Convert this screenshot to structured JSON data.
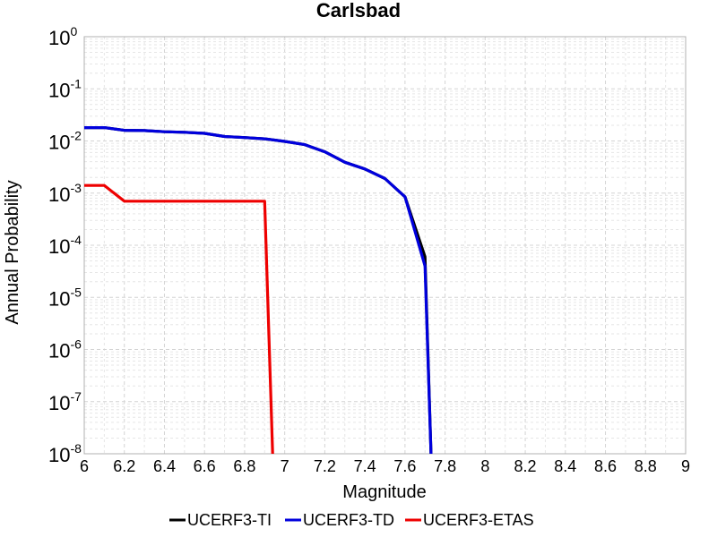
{
  "chart_data": {
    "type": "line",
    "title": "Carlsbad",
    "xlabel": "Magnitude",
    "ylabel": "Annual Probability",
    "xlim": [
      6,
      9
    ],
    "ylim": [
      1e-08,
      1
    ],
    "yscale": "log",
    "grid": true,
    "legend_position": "bottom",
    "x_ticks": [
      "6",
      "6.2",
      "6.4",
      "6.6",
      "6.8",
      "7",
      "7.2",
      "7.4",
      "7.6",
      "7.8",
      "8",
      "8.2",
      "8.4",
      "8.6",
      "8.8",
      "9"
    ],
    "y_ticks": [
      {
        "base": "10",
        "exp": "0"
      },
      {
        "base": "10",
        "exp": "-1"
      },
      {
        "base": "10",
        "exp": "-2"
      },
      {
        "base": "10",
        "exp": "-3"
      },
      {
        "base": "10",
        "exp": "-4"
      },
      {
        "base": "10",
        "exp": "-5"
      },
      {
        "base": "10",
        "exp": "-6"
      },
      {
        "base": "10",
        "exp": "-7"
      },
      {
        "base": "10",
        "exp": "-8"
      }
    ],
    "series": [
      {
        "name": "UCERF3-TI",
        "color": "#000000",
        "x": [
          6.0,
          6.1,
          6.2,
          6.3,
          6.4,
          6.5,
          6.6,
          6.7,
          6.8,
          6.9,
          7.0,
          7.1,
          7.2,
          7.3,
          7.4,
          7.5,
          7.6,
          7.7,
          7.73
        ],
        "y": [
          0.018,
          0.018,
          0.016,
          0.0158,
          0.015,
          0.0147,
          0.014,
          0.0122,
          0.0116,
          0.011,
          0.0098,
          0.0085,
          0.0062,
          0.0039,
          0.0029,
          0.0019,
          0.00085,
          6e-05,
          1e-08
        ]
      },
      {
        "name": "UCERF3-TD",
        "color": "#0000dd",
        "x": [
          6.0,
          6.1,
          6.2,
          6.3,
          6.4,
          6.5,
          6.6,
          6.7,
          6.8,
          6.9,
          7.0,
          7.1,
          7.2,
          7.3,
          7.4,
          7.5,
          7.6,
          7.7,
          7.73
        ],
        "y": [
          0.018,
          0.018,
          0.016,
          0.0158,
          0.015,
          0.0147,
          0.014,
          0.0122,
          0.0116,
          0.011,
          0.0098,
          0.0085,
          0.0062,
          0.0039,
          0.0029,
          0.0019,
          0.00085,
          4e-05,
          1e-08
        ]
      },
      {
        "name": "UCERF3-ETAS",
        "color": "#ee0000",
        "x": [
          6.0,
          6.1,
          6.2,
          6.3,
          6.4,
          6.5,
          6.6,
          6.7,
          6.8,
          6.9,
          6.94
        ],
        "y": [
          0.0014,
          0.0014,
          0.0007,
          0.0007,
          0.0007,
          0.0007,
          0.0007,
          0.0007,
          0.0007,
          0.0007,
          1e-08
        ]
      }
    ]
  }
}
